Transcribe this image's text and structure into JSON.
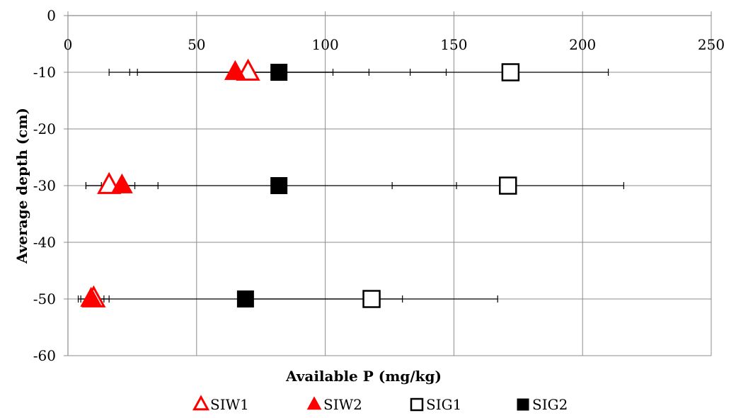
{
  "chart_data": {
    "type": "scatter",
    "title": "",
    "xlabel": "Available P (mg/kg)",
    "ylabel": "Average depth (cm)",
    "xlim": [
      0,
      250
    ],
    "ylim": [
      -60,
      0
    ],
    "x_ticks": [
      0,
      50,
      100,
      150,
      200,
      250
    ],
    "y_ticks": [
      0,
      -10,
      -20,
      -30,
      -40,
      -50,
      -60
    ],
    "x_tick_labels": [
      "0",
      "50",
      "100",
      "150",
      "200",
      "250"
    ],
    "y_tick_labels": [
      "0",
      "-10",
      "-20",
      "-30",
      "-40",
      "-50",
      "-60"
    ],
    "x_axis_position": "top",
    "grid": true,
    "legend_position": "bottom",
    "error_bars": "horizontal",
    "series": [
      {
        "name": "SIW1",
        "marker": "triangle-open",
        "color": "#ff0000",
        "points": [
          {
            "x": 70,
            "y": -10,
            "xerr_low": 16,
            "xerr_high": 117
          },
          {
            "x": 16,
            "y": -30,
            "xerr_low": 7,
            "xerr_high": 26
          },
          {
            "x": 10,
            "y": -50,
            "xerr_low": 5,
            "xerr_high": 16
          }
        ]
      },
      {
        "name": "SIW2",
        "marker": "triangle-filled",
        "color": "#ff0000",
        "points": [
          {
            "x": 65,
            "y": -10,
            "xerr_low": 27,
            "xerr_high": 103
          },
          {
            "x": 21,
            "y": -30,
            "xerr_low": 7,
            "xerr_high": 35
          },
          {
            "x": 9,
            "y": -50,
            "xerr_low": 4,
            "xerr_high": 14
          }
        ]
      },
      {
        "name": "SIG1",
        "marker": "square-open",
        "color": "#000000",
        "points": [
          {
            "x": 172,
            "y": -10,
            "xerr_low": 133,
            "xerr_high": 210
          },
          {
            "x": 171,
            "y": -30,
            "xerr_low": 126,
            "xerr_high": 216
          },
          {
            "x": 118,
            "y": -50,
            "xerr_low": 69,
            "xerr_high": 167
          }
        ]
      },
      {
        "name": "SIG2",
        "marker": "square-filled",
        "color": "#000000",
        "points": [
          {
            "x": 82,
            "y": -10,
            "xerr_low": 24,
            "xerr_high": 147
          },
          {
            "x": 82,
            "y": -30,
            "xerr_low": 13,
            "xerr_high": 151
          },
          {
            "x": 69,
            "y": -50,
            "xerr_low": 12,
            "xerr_high": 130
          }
        ]
      }
    ]
  }
}
